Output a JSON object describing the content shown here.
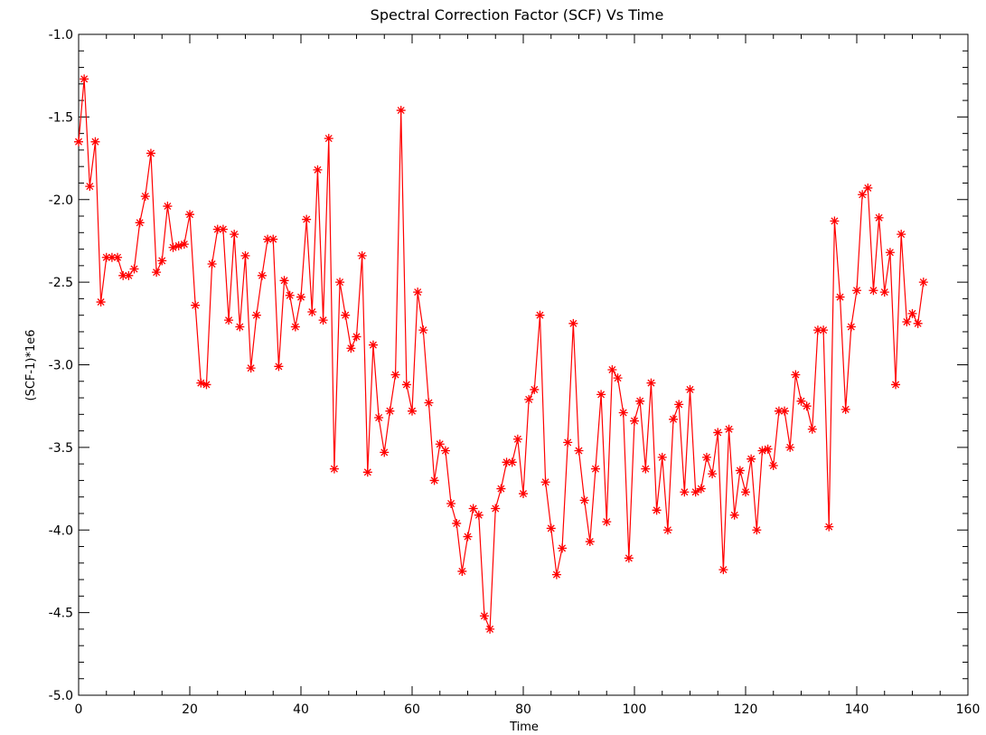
{
  "chart_data": {
    "type": "line",
    "title": "Spectral Correction Factor (SCF) Vs Time",
    "xlabel": "Time",
    "ylabel": "(SCF-1)*1e6",
    "xlim": [
      0,
      160
    ],
    "ylim": [
      -5.0,
      -1.0
    ],
    "x_ticks": [
      "0",
      "20",
      "40",
      "60",
      "80",
      "100",
      "120",
      "140",
      "160"
    ],
    "y_ticks": [
      "-1.0",
      "-1.5",
      "-2.0",
      "-2.5",
      "-3.0",
      "-3.5",
      "-4.0",
      "-4.5",
      "-5.0"
    ],
    "grid": false,
    "marker": "asterisk",
    "colors": {
      "series": "#ff0000",
      "axes": "#000000",
      "background": "#ffffff"
    },
    "series": [
      {
        "x": [
          0,
          1,
          2,
          3,
          4,
          5,
          6,
          7,
          8,
          9,
          10,
          11,
          12,
          13,
          14,
          15,
          16,
          17,
          18,
          19,
          20,
          21,
          22,
          23,
          24,
          25,
          26,
          27,
          28,
          29,
          30,
          31,
          32,
          33,
          34,
          35,
          36,
          37,
          38,
          39,
          40,
          41,
          42,
          43,
          44,
          45,
          46,
          47,
          48,
          49,
          50,
          51,
          52,
          53,
          54,
          55,
          56,
          57,
          58,
          59,
          60,
          61,
          62,
          63,
          64,
          65,
          66,
          67,
          68,
          69,
          70,
          71,
          72,
          73,
          74,
          75,
          76,
          77,
          78,
          79,
          80,
          81,
          82,
          83,
          84,
          85,
          86,
          87,
          88,
          89,
          90,
          91,
          92,
          93,
          94,
          95,
          96,
          97,
          98,
          99,
          100,
          101,
          102,
          103,
          104,
          105,
          106,
          107,
          108,
          109,
          110,
          111,
          112,
          113,
          114,
          115,
          116,
          117,
          118,
          119,
          120,
          121,
          122,
          123,
          124,
          125,
          126,
          127,
          128,
          129,
          130,
          131,
          132,
          133,
          134,
          135,
          136,
          137,
          138,
          139,
          140,
          141,
          142,
          143,
          144,
          145,
          146,
          147,
          148,
          149,
          150,
          151,
          152
        ],
        "y": [
          -1.65,
          -1.27,
          -1.92,
          -1.65,
          -2.62,
          -2.35,
          -2.35,
          -2.35,
          -2.46,
          -2.46,
          -2.42,
          -2.14,
          -1.98,
          -1.72,
          -2.44,
          -2.37,
          -2.04,
          -2.29,
          -2.28,
          -2.27,
          -2.09,
          -2.64,
          -3.11,
          -3.12,
          -2.39,
          -2.18,
          -2.18,
          -2.73,
          -2.21,
          -2.77,
          -2.34,
          -3.02,
          -2.7,
          -2.46,
          -2.24,
          -2.24,
          -3.01,
          -2.49,
          -2.58,
          -2.77,
          -2.59,
          -2.12,
          -2.68,
          -1.82,
          -2.73,
          -1.63,
          -3.63,
          -2.5,
          -2.7,
          -2.9,
          -2.83,
          -2.34,
          -3.65,
          -2.88,
          -3.32,
          -3.53,
          -3.28,
          -3.06,
          -1.46,
          -3.12,
          -3.28,
          -2.56,
          -2.79,
          -3.23,
          -3.7,
          -3.48,
          -3.52,
          -3.84,
          -3.96,
          -4.25,
          -4.04,
          -3.87,
          -3.91,
          -4.52,
          -4.6,
          -3.87,
          -3.75,
          -3.59,
          -3.59,
          -3.45,
          -3.78,
          -3.21,
          -3.15,
          -2.7,
          -3.71,
          -3.99,
          -4.27,
          -4.11,
          -3.47,
          -2.75,
          -3.52,
          -3.82,
          -4.07,
          -3.63,
          -3.18,
          -3.95,
          -3.03,
          -3.08,
          -3.29,
          -4.17,
          -3.34,
          -3.22,
          -3.63,
          -3.11,
          -3.88,
          -3.56,
          -4.0,
          -3.33,
          -3.24,
          -3.77,
          -3.15,
          -3.77,
          -3.75,
          -3.56,
          -3.66,
          -3.41,
          -4.24,
          -3.39,
          -3.91,
          -3.64,
          -3.77,
          -3.57,
          -4.0,
          -3.52,
          -3.51,
          -3.61,
          -3.28,
          -3.28,
          -3.5,
          -3.06,
          -3.22,
          -3.25,
          -3.39,
          -2.79,
          -2.79,
          -3.98,
          -2.13,
          -2.59,
          -3.27,
          -2.77,
          -2.55,
          -1.97,
          -1.93,
          -2.55,
          -2.11,
          -2.56,
          -2.32,
          -3.12,
          -2.21,
          -2.74,
          -2.69,
          -2.75,
          -2.5
        ]
      }
    ]
  }
}
